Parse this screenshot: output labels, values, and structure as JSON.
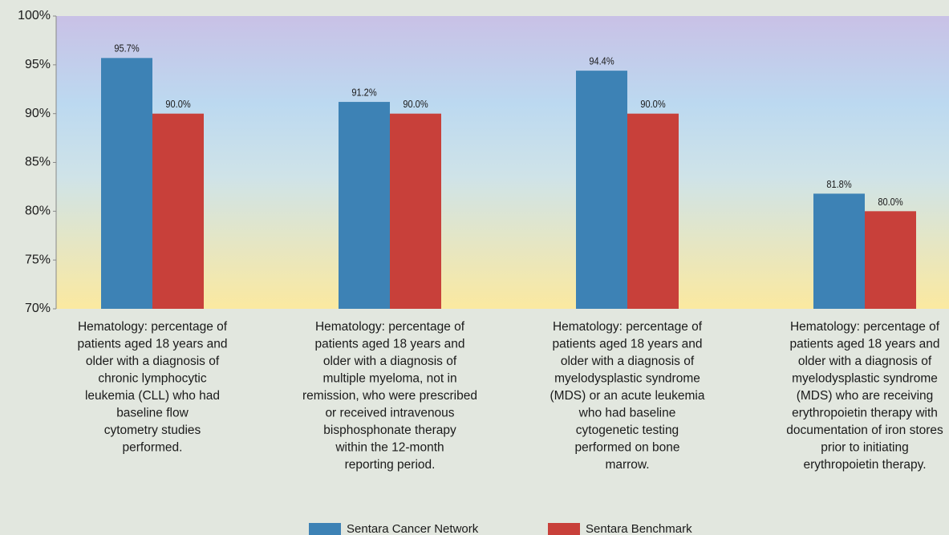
{
  "chart_data": {
    "type": "bar",
    "categories": [
      "Hematology: percentage of\npatients aged 18 years and\nolder with a diagnosis of\nchronic lymphocytic\nleukemia (CLL) who had\nbaseline flow\ncytometry studies\nperformed.",
      "Hematology: percentage of\npatients aged 18 years and\nolder with a diagnosis of\nmultiple myeloma, not in\nremission, who were prescribed\nor received intravenous\nbisphosphonate therapy\nwithin the 12-month\nreporting period.",
      "Hematology: percentage of\npatients aged 18 years and\nolder with a diagnosis of\nmyelodysplastic syndrome\n(MDS) or an acute leukemia\nwho had baseline\ncytogenetic testing\nperformed on bone\nmarrow.",
      "Hematology: percentage of\npatients aged 18 years and\nolder with a diagnosis of\nmyelodysplastic syndrome\n(MDS) who are receiving\nerythropoietin therapy with\ndocumentation of iron stores\nprior to initiating\nerythropoietin therapy."
    ],
    "series": [
      {
        "name": "Sentara Cancer Network",
        "color": "#3d82b5",
        "values": [
          95.7,
          91.2,
          94.4,
          81.8
        ],
        "value_labels": [
          "95.7%",
          "91.2%",
          "94.4%",
          "81.8%"
        ]
      },
      {
        "name": "Sentara Benchmark",
        "color": "#c8403a",
        "values": [
          90.0,
          90.0,
          90.0,
          80.0
        ],
        "value_labels": [
          "90.0%",
          "90.0%",
          "90.0%",
          "80.0%"
        ]
      }
    ],
    "ylim": [
      70,
      100
    ],
    "yticks": [
      {
        "value": 70,
        "label": "70%"
      },
      {
        "value": 75,
        "label": "75%"
      },
      {
        "value": 80,
        "label": "80%"
      },
      {
        "value": 85,
        "label": "85%"
      },
      {
        "value": 90,
        "label": "90%"
      },
      {
        "value": 95,
        "label": "95%"
      },
      {
        "value": 100,
        "label": "100%"
      }
    ],
    "legend": "bottom"
  }
}
